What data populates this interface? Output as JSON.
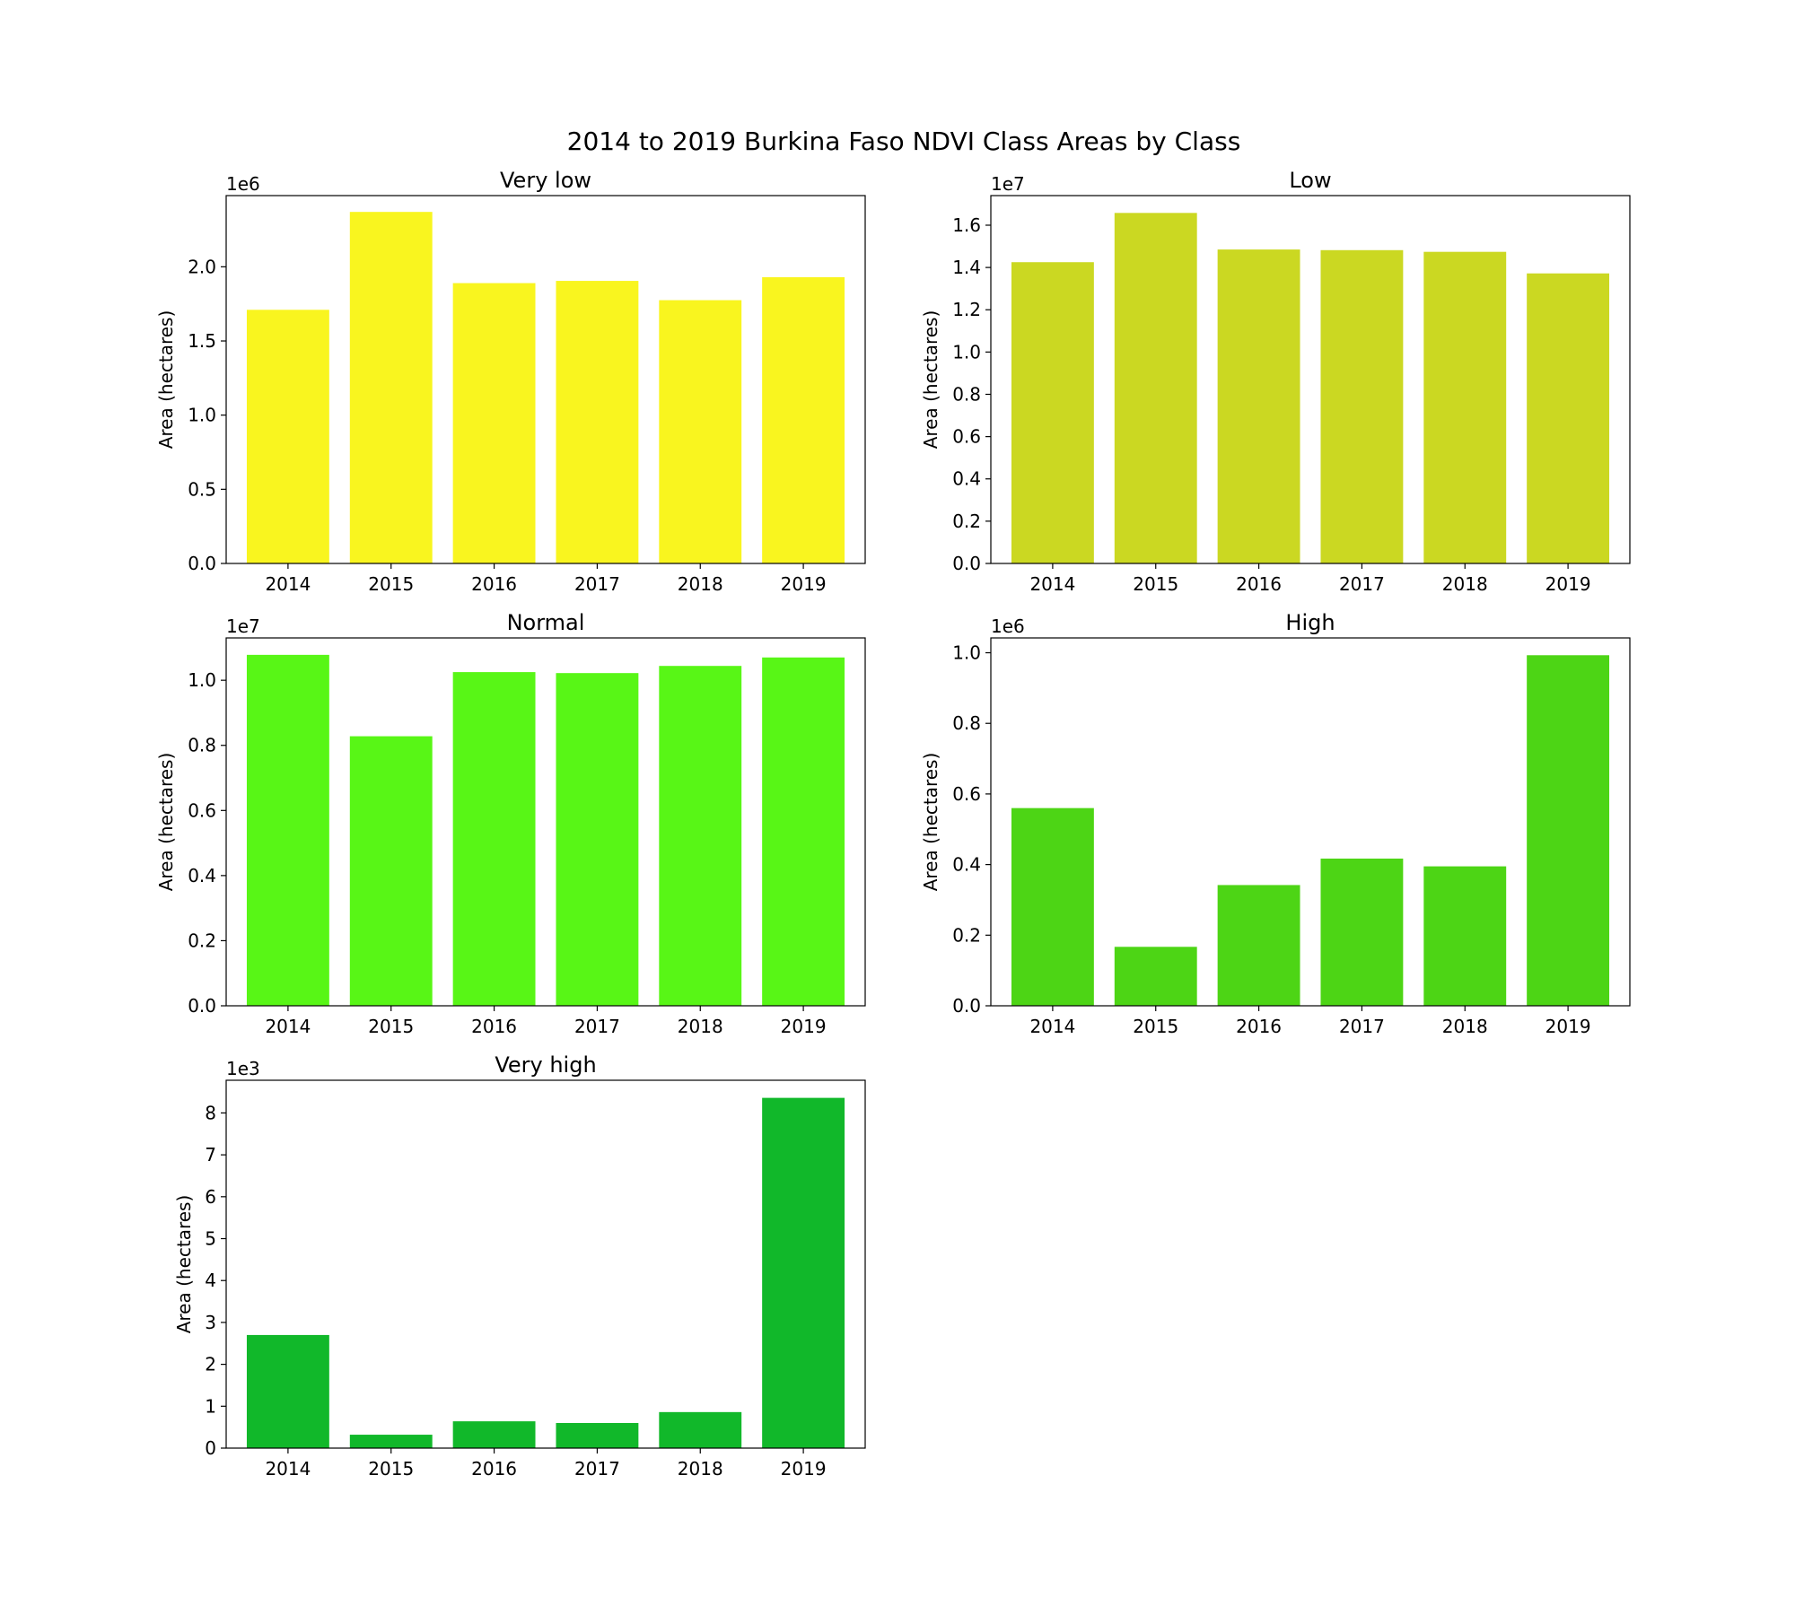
{
  "title": "2014 to 2019 Burkina Faso NDVI Class Areas by Class",
  "chart_data": [
    {
      "type": "bar",
      "title": "Very low",
      "ylabel": "Area (hectares)",
      "offset_label": "1e6",
      "color": "#f9f51f",
      "categories": [
        "2014",
        "2015",
        "2016",
        "2017",
        "2018",
        "2019"
      ],
      "values": [
        1710000,
        2370000,
        1890000,
        1905000,
        1775000,
        1930000
      ],
      "ylim": [
        0,
        2480000
      ],
      "yticks": [
        0,
        500000,
        1000000,
        1500000,
        2000000
      ],
      "ytick_labels": [
        "0.0",
        "0.5",
        "1.0",
        "1.5",
        "2.0"
      ]
    },
    {
      "type": "bar",
      "title": "Low",
      "ylabel": "Area (hectares)",
      "offset_label": "1e7",
      "color": "#cbd822",
      "categories": [
        "2014",
        "2015",
        "2016",
        "2017",
        "2018",
        "2019"
      ],
      "values": [
        14250000,
        16580000,
        14850000,
        14820000,
        14740000,
        13720000
      ],
      "ylim": [
        0,
        17400000
      ],
      "yticks": [
        0,
        2000000,
        4000000,
        6000000,
        8000000,
        10000000,
        12000000,
        14000000,
        16000000
      ],
      "ytick_labels": [
        "0.0",
        "0.2",
        "0.4",
        "0.6",
        "0.8",
        "1.0",
        "1.2",
        "1.4",
        "1.6"
      ]
    },
    {
      "type": "bar",
      "title": "Normal",
      "ylabel": "Area (hectares)",
      "offset_label": "1e7",
      "color": "#58f616",
      "categories": [
        "2014",
        "2015",
        "2016",
        "2017",
        "2018",
        "2019"
      ],
      "values": [
        10780000,
        8280000,
        10250000,
        10220000,
        10440000,
        10700000
      ],
      "ylim": [
        0,
        11300000
      ],
      "yticks": [
        0,
        2000000,
        4000000,
        6000000,
        8000000,
        10000000
      ],
      "ytick_labels": [
        "0.0",
        "0.2",
        "0.4",
        "0.6",
        "0.8",
        "1.0"
      ]
    },
    {
      "type": "bar",
      "title": "High",
      "ylabel": "Area (hectares)",
      "offset_label": "1e6",
      "color": "#4dd515",
      "categories": [
        "2014",
        "2015",
        "2016",
        "2017",
        "2018",
        "2019"
      ],
      "values": [
        560000,
        167000,
        342000,
        417000,
        395000,
        993000
      ],
      "ylim": [
        0,
        1042000
      ],
      "yticks": [
        0,
        200000,
        400000,
        600000,
        800000,
        1000000
      ],
      "ytick_labels": [
        "0.0",
        "0.2",
        "0.4",
        "0.6",
        "0.8",
        "1.0"
      ]
    },
    {
      "type": "bar",
      "title": "Very high",
      "ylabel": "Area (hectares)",
      "offset_label": "1e3",
      "color": "#11b82a",
      "categories": [
        "2014",
        "2015",
        "2016",
        "2017",
        "2018",
        "2019"
      ],
      "values": [
        2700,
        320,
        640,
        600,
        860,
        8360
      ],
      "ylim": [
        0,
        8780
      ],
      "yticks": [
        0,
        1000,
        2000,
        3000,
        4000,
        5000,
        6000,
        7000,
        8000
      ],
      "ytick_labels": [
        "0",
        "1",
        "2",
        "3",
        "4",
        "5",
        "6",
        "7",
        "8"
      ]
    }
  ]
}
